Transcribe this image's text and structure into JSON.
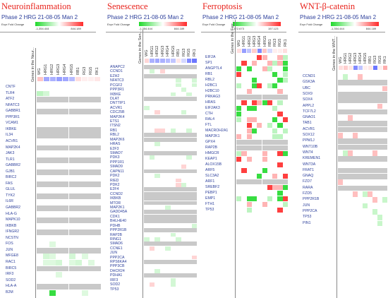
{
  "legend": {
    "caption": "Expr Fold Change",
    "min_label": "-1,354.444",
    "max_label": "844.189"
  },
  "chart_data": [
    {
      "type": "heatmap",
      "title": "Neuroinflammation",
      "subtitle": "Phase 2 HRG 21-08-05 Man 2",
      "genes_header": "Genes in the Neur...",
      "legend_min": "-1,354.444",
      "legend_max": "844.189",
      "columns": [
        "WG",
        "HRG1",
        "HRG2",
        "HRG3",
        "HRG4",
        "HRG5",
        "RB1",
        "RG3",
        "RG5",
        "RK1"
      ],
      "header_levels": [
        0.35,
        -0.45,
        -0.4,
        -0.5,
        -0.45,
        -0.35,
        0.2,
        0.1,
        0.1,
        0.15
      ],
      "genes": [
        "CNTF",
        "TLR4",
        "ATF2",
        "NFATC3",
        "GABBR1",
        "PPP3R1",
        "VCAM1",
        "IKBKE",
        "IL34",
        "ACVR1",
        "MAP2K4",
        "JAK3",
        "TLR1",
        "GABBR2",
        "GJB1",
        "BIRC2",
        "FAS",
        "GLUL",
        "TYK2",
        "IL6R",
        "GABBR2",
        "HLA-G",
        "MAPK10",
        "IKBKB",
        "IFNGR2",
        "NCSTN",
        "FOS",
        "JUN",
        "MFGE8",
        "RAC1",
        "BIRC5",
        "IRF3",
        "SOD2",
        "HLA-A",
        "B2M"
      ],
      "values": [
        [
          0,
          0,
          0,
          0,
          0,
          0,
          0,
          0,
          0,
          0
        ],
        [
          -0.3,
          -0.2,
          0,
          0,
          0,
          0,
          0,
          0,
          0,
          0
        ],
        [
          null,
          null,
          null,
          null,
          null,
          null,
          null,
          null,
          null,
          null
        ],
        [
          0,
          0,
          0,
          0,
          0,
          0,
          0,
          0,
          0,
          0
        ],
        [
          null,
          null,
          null,
          null,
          null,
          null,
          null,
          null,
          null,
          null
        ],
        [
          0,
          0,
          0,
          0,
          0,
          0,
          0,
          0,
          0,
          0
        ],
        [
          0,
          0,
          0,
          0,
          0,
          0,
          0,
          0,
          0,
          0
        ],
        [
          null,
          null,
          null,
          null,
          null,
          null,
          null,
          null,
          null,
          null
        ],
        [
          null,
          null,
          null,
          null,
          null,
          null,
          null,
          null,
          null,
          null
        ],
        [
          0,
          0,
          0,
          0,
          0,
          0,
          0,
          0,
          0,
          0
        ],
        [
          null,
          null,
          null,
          null,
          null,
          null,
          null,
          null,
          null,
          null
        ],
        [
          0,
          0,
          0,
          0,
          0,
          0,
          0,
          0,
          0,
          0
        ],
        [
          null,
          null,
          null,
          null,
          null,
          null,
          null,
          null,
          null,
          null
        ],
        [
          0,
          0,
          0,
          0,
          0,
          0,
          0,
          0,
          0,
          0
        ],
        [
          null,
          null,
          null,
          null,
          null,
          null,
          null,
          null,
          null,
          null
        ],
        [
          0,
          0,
          0,
          0,
          0,
          0,
          0,
          0,
          0,
          0
        ],
        [
          null,
          null,
          null,
          null,
          null,
          null,
          null,
          null,
          null,
          null
        ],
        [
          0,
          0,
          0,
          0,
          0,
          0,
          0,
          0,
          0,
          0
        ],
        [
          null,
          null,
          null,
          null,
          null,
          null,
          null,
          null,
          null,
          null
        ],
        [
          0,
          0,
          0,
          0,
          0,
          0,
          0,
          0,
          0,
          0
        ],
        [
          null,
          null,
          null,
          null,
          null,
          null,
          null,
          null,
          null,
          null
        ],
        [
          0,
          0,
          0,
          0,
          0,
          0,
          0,
          0,
          0,
          0
        ],
        [
          null,
          null,
          null,
          null,
          null,
          null,
          null,
          null,
          null,
          null
        ],
        [
          0,
          0,
          0,
          0,
          0,
          0,
          0,
          0,
          0,
          0
        ],
        [
          null,
          null,
          null,
          null,
          null,
          null,
          null,
          null,
          null,
          null
        ],
        [
          0,
          0,
          0,
          0,
          0,
          0,
          0,
          0,
          0,
          0
        ],
        [
          0,
          0,
          -0.15,
          0,
          0,
          0,
          0,
          0,
          0,
          0
        ],
        [
          null,
          null,
          null,
          null,
          null,
          null,
          null,
          null,
          null,
          null
        ],
        [
          0,
          -0.2,
          -0.15,
          0,
          0,
          -0.2,
          0,
          -0.15,
          0,
          0
        ],
        [
          0,
          -0.15,
          -0.15,
          -0.2,
          0,
          -0.15,
          -0.2,
          0,
          -0.15,
          0
        ],
        [
          null,
          null,
          null,
          null,
          null,
          null,
          null,
          null,
          null,
          null
        ],
        [
          0,
          0,
          0,
          -0.15,
          0,
          0,
          0,
          0,
          0,
          0
        ],
        [
          0,
          0,
          0,
          0,
          0,
          0,
          0,
          0,
          0,
          0
        ],
        [
          null,
          null,
          null,
          null,
          null,
          null,
          null,
          null,
          null,
          null
        ],
        [
          0,
          0,
          -0.9,
          0,
          0,
          0,
          0,
          -0.15,
          0,
          0
        ]
      ]
    },
    {
      "type": "heatmap",
      "title": "Senescence",
      "subtitle": "Phase 2 HRG 21-08-05 Man 2",
      "genes_header": "Genes in the Sen...",
      "legend_min": "-1,354.444",
      "legend_max": "844.189",
      "columns": [
        "WG",
        "HRG1",
        "HRG2",
        "HRG3",
        "HRG4",
        "HRG5",
        "RB1",
        "RG3",
        "RG5",
        "RK1"
      ],
      "header_levels": [
        0.25,
        -0.4,
        -0.45,
        -0.4,
        -0.35,
        -0.3,
        0.15,
        -0.2,
        -0.6,
        -0.7
      ],
      "genes": [
        "ANAPC2",
        "CCND1",
        "EZH2",
        "NFATC3",
        "PCGF2",
        "PPP3R1",
        "IKBKE",
        "DLAT",
        "DNTTIP1",
        "ACVR1",
        "CDC25B",
        "MAP2K4",
        "ETS1",
        "ITSN2",
        "RB1",
        "RBL2",
        "MAP2K6",
        "HRAS",
        "E2F3",
        "SMAD7",
        "PDK3",
        "PPP1R1",
        "SMAD9",
        "CAPN11",
        "PDK2",
        "RIED",
        "PDK2",
        "E2F4",
        "CCND2",
        "IKBKB",
        "MTOR",
        "MAP2K1",
        "GADD45A",
        "CDK1",
        "BHLHE40",
        "PDHB",
        "PPP2R1B",
        "RAP2B",
        "RING1",
        "SMAD6",
        "CCNE1",
        "JUN",
        "PPP2CA",
        "RPS6KA4",
        "PPP3CB",
        "DHCR24",
        "PDHA1",
        "IRF3",
        "SOD2",
        "TP53"
      ],
      "values": "generated"
    },
    {
      "type": "heatmap",
      "title": "Ferroptosis",
      "subtitle": "Phase 2 HRG 21-08-05 Man 2",
      "genes_header": "Genes in the Ferr...",
      "legend_min": "-172.673",
      "legend_max": "157.123",
      "columns": [
        "WG",
        "HRG1",
        "HRG2",
        "HRG3",
        "HRG4",
        "HRG5",
        "RB1",
        "RG3",
        "RG5",
        "RK1"
      ],
      "header_levels": [
        0.2,
        -0.5,
        -0.3,
        0.3,
        -0.6,
        0.35,
        -0.2,
        0.1,
        0.1,
        0.2
      ],
      "genes": [
        "EIF2A",
        "SP1",
        "ANGPTL4",
        "RB1",
        "RBL2",
        "H2BC1",
        "H2BC10",
        "PRKAG3",
        "HRAS",
        "EIF2AK3",
        "CTH",
        "RAL4",
        "FTL",
        "MACROH2A1",
        "MAP2K1",
        "GPX4",
        "RAP2B",
        "HMGCR",
        "KEAP1",
        "ALOX15B",
        "ARF5",
        "SLC3A2",
        "ARF1",
        "SREBF2",
        "PEBP1",
        "EMP1",
        "FTH1",
        "TP53"
      ],
      "values": "generated"
    },
    {
      "type": "heatmap",
      "title": "WNT-β-catenin",
      "subtitle": "Phase 2 HRG 21-08-05 Man 2",
      "genes_header": "Genes in the WNT...",
      "legend_min": "-1,354.444",
      "legend_max": "844.189",
      "columns": [
        "WG",
        "HRG1",
        "HRG2",
        "HRG3",
        "HRG4",
        "HRG5",
        "RB1",
        "RG3",
        "RG5",
        "RK1"
      ],
      "header_levels": [
        0.2,
        0.3,
        0.15,
        -0.6,
        -0.3,
        0.1,
        0.15,
        -0.7,
        0.1,
        0.5
      ],
      "genes": [
        "CCND1",
        "GSK3A",
        "UBC",
        "SOX9",
        "SOX4",
        "APPL2",
        "TCF7L2",
        "GNAO1",
        "TAB1",
        "ACVR1",
        "SOX12",
        "PPM1J",
        "WNT10B",
        "WNT4",
        "KREMEN1",
        "WNT3A",
        "FRAT1",
        "GNAQ",
        "FZD7",
        "RARA",
        "FZD5",
        "PPP2R1B",
        "JUN",
        "PPP2CA",
        "TP53",
        "PIN1"
      ],
      "values": "generated"
    }
  ]
}
